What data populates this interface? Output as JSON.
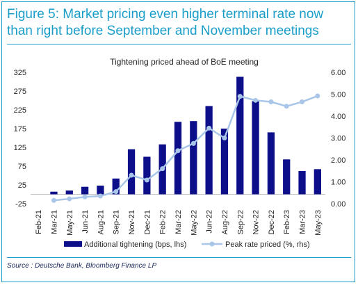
{
  "figure": {
    "title": "Figure 5: Market pricing even higher terminal rate now than right before September and November meetings",
    "source": "Source : Deutsche Bank, Bloomberg Finance LP"
  },
  "colors": {
    "accent": "#1a9ec9",
    "bars": "#0d0f8a",
    "line": "#a9c6e8"
  },
  "chart_data": {
    "type": "bar",
    "title": "Tightening priced ahead of BoE meeting",
    "categories": [
      "Feb-21",
      "Mar-21",
      "May-21",
      "Jun-21",
      "Aug-21",
      "Sep-21",
      "Nov-21",
      "Dec-21",
      "Feb-22",
      "Mar-22",
      "May-22",
      "Jun-22",
      "Aug-22",
      "Sep-22",
      "Nov-22",
      "Dec-22",
      "Feb-23",
      "Mar-23",
      "May-23"
    ],
    "x_tick_labels": [
      "Feb-21",
      "Mar-21",
      "May-21",
      "Jun-21",
      "Aug-21",
      "Sep-21",
      "Nov-21",
      "Dec-21",
      "Feb-22",
      "Mar-22",
      "May-22",
      "Jun-22",
      "Aug-22",
      "Sep-22",
      "Nov-22",
      "Dec-22",
      "Feb-23",
      "Mar-23",
      "May-23"
    ],
    "y_left": {
      "min": -25,
      "max": 325,
      "ticks": [
        "325",
        "275",
        "225",
        "175",
        "125",
        "75",
        "25",
        "-25"
      ]
    },
    "y_right": {
      "min": 0,
      "max": 6,
      "ticks": [
        "6.00",
        "5.00",
        "4.00",
        "3.00",
        "2.00",
        "1.00",
        "0.00"
      ]
    },
    "series": [
      {
        "name": "Additional tightening (bps, lhs)",
        "type": "bar",
        "axis": "left",
        "values": [
          null,
          7,
          10,
          20,
          23,
          42,
          120,
          100,
          133,
          193,
          195,
          235,
          175,
          313,
          248,
          165,
          93,
          62,
          67
        ]
      },
      {
        "name": "Peak rate priced (%, rhs)",
        "type": "line",
        "axis": "right",
        "values": [
          null,
          0.15,
          0.22,
          0.31,
          0.35,
          0.55,
          1.3,
          1.08,
          1.6,
          2.42,
          2.75,
          3.45,
          3.0,
          4.9,
          4.72,
          4.65,
          4.45,
          4.65,
          4.92
        ]
      }
    ],
    "legend_position": "bottom"
  }
}
